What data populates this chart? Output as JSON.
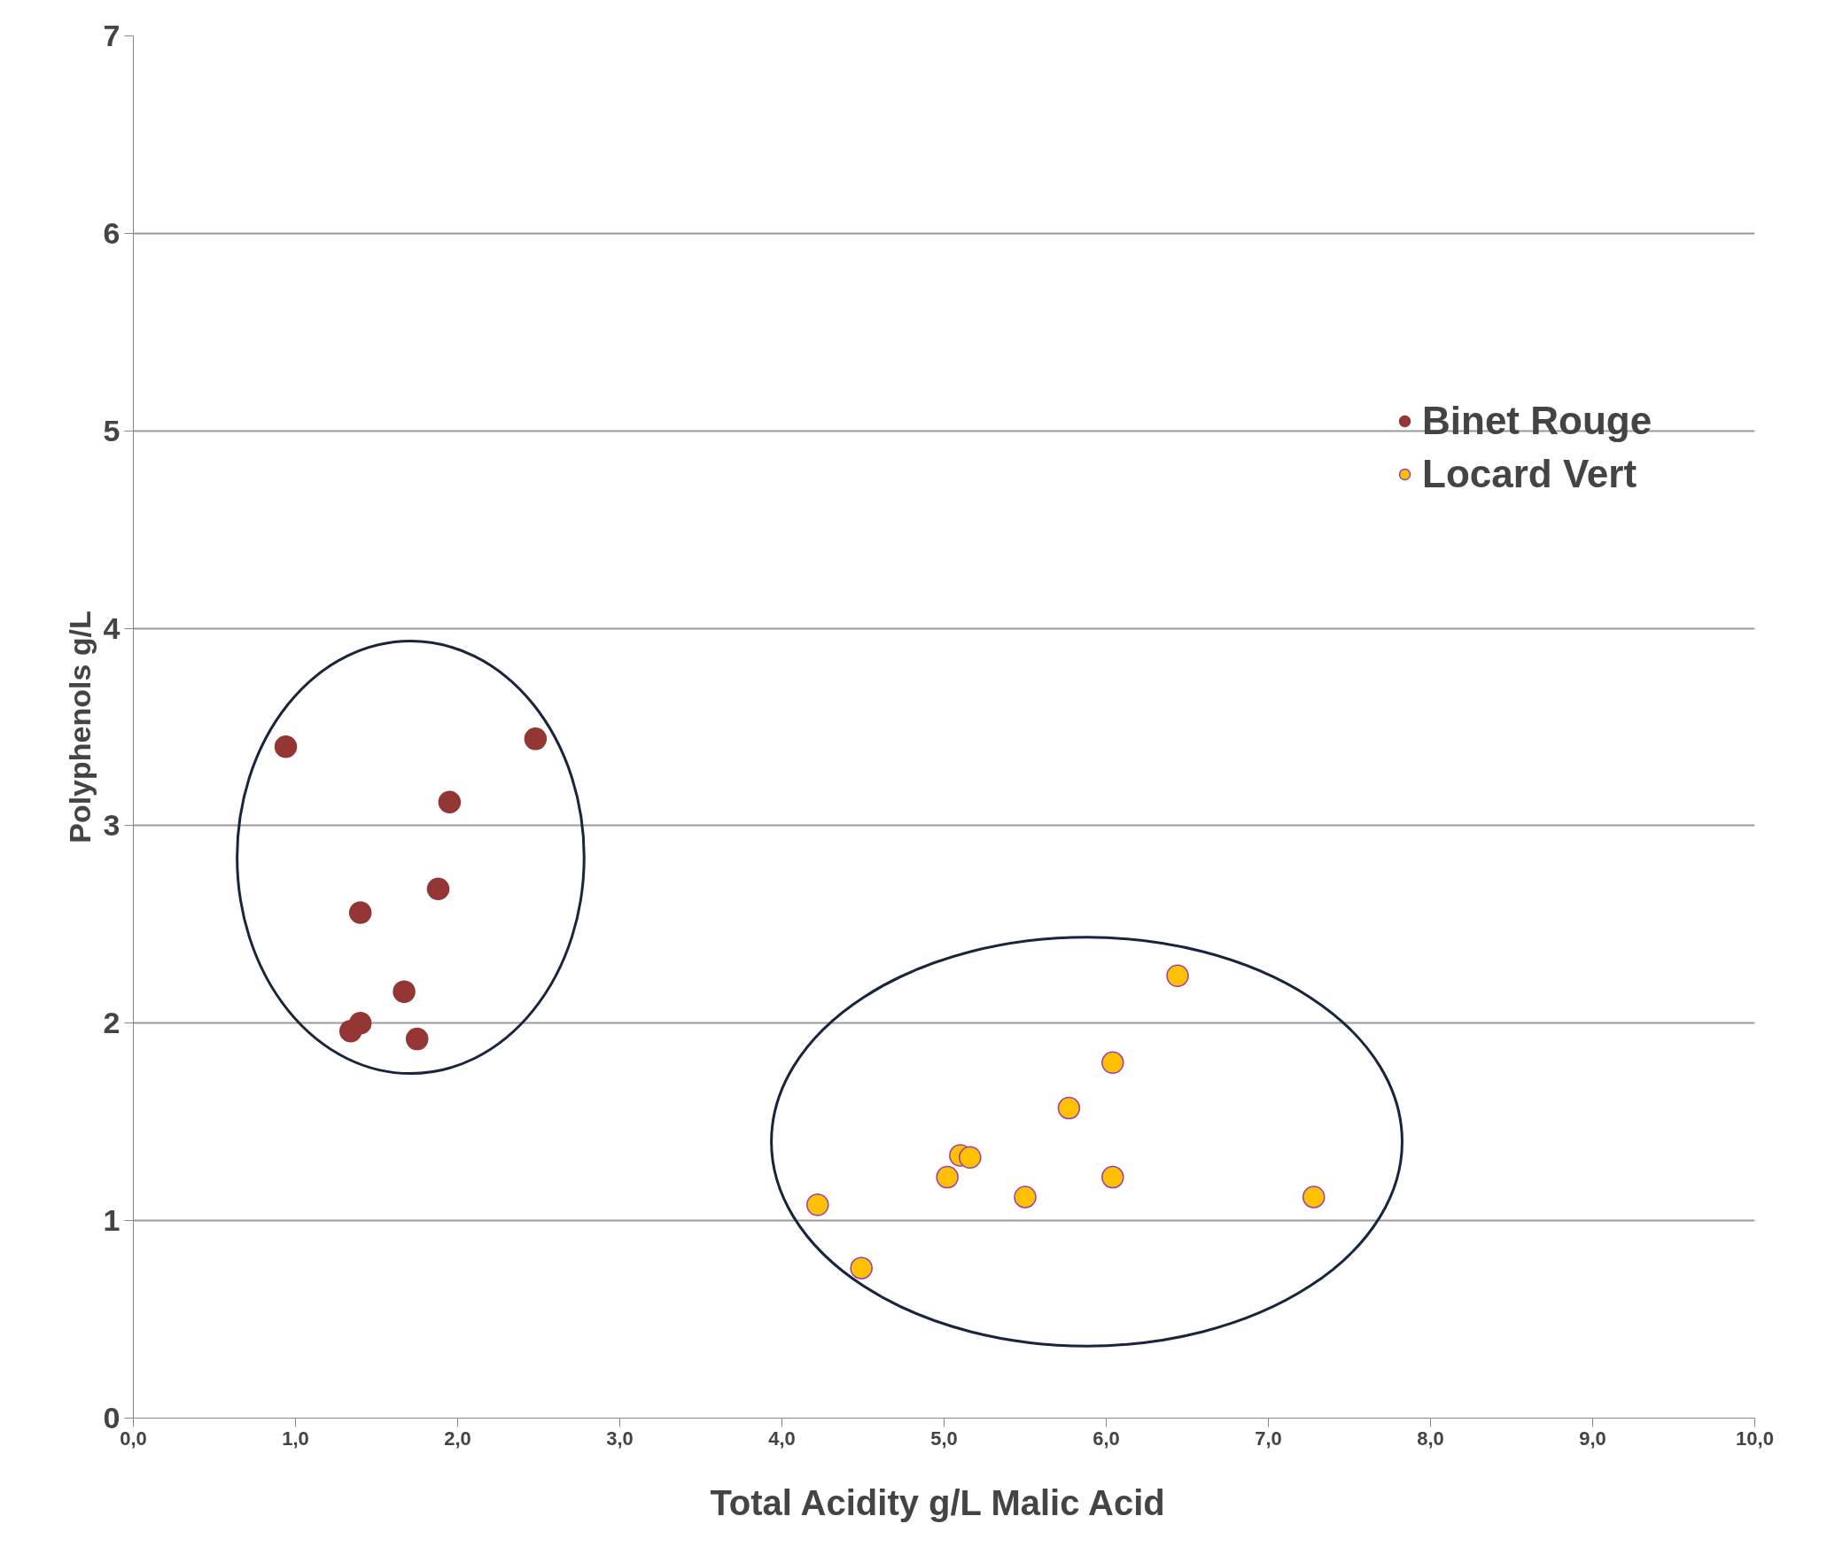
{
  "chart_data": {
    "type": "scatter",
    "xlabel": "Total Acidity  g/L Malic Acid",
    "ylabel": "Polyphenols g/L",
    "series": [
      {
        "name": "Binet Rouge",
        "color": "#943634",
        "x": [
          0.94,
          2.48,
          1.95,
          1.88,
          1.4,
          1.67,
          1.4,
          1.34,
          1.75
        ],
        "values": [
          3.4,
          3.44,
          3.12,
          2.68,
          2.56,
          2.16,
          2.0,
          1.96,
          1.92
        ]
      },
      {
        "name": "Locard Vert",
        "color": "#ffc000",
        "x": [
          6.44,
          6.04,
          5.77,
          5.1,
          5.16,
          5.02,
          5.5,
          6.04,
          7.28,
          4.22,
          4.49
        ],
        "values": [
          2.24,
          1.8,
          1.57,
          1.33,
          1.32,
          1.22,
          1.12,
          1.22,
          1.12,
          1.08,
          0.76
        ]
      }
    ],
    "xlim": [
      0,
      10
    ],
    "ylim": [
      0,
      7
    ],
    "xticks": [
      {
        "value": 0,
        "label": "0,0"
      },
      {
        "value": 1,
        "label": "1,0"
      },
      {
        "value": 2,
        "label": "2,0"
      },
      {
        "value": 3,
        "label": "3,0"
      },
      {
        "value": 4,
        "label": "4,0"
      },
      {
        "value": 5,
        "label": "5,0"
      },
      {
        "value": 6,
        "label": "6,0"
      },
      {
        "value": 7,
        "label": "7,0"
      },
      {
        "value": 8,
        "label": "8,0"
      },
      {
        "value": 9,
        "label": "9,0"
      },
      {
        "value": 10,
        "label": "10,0"
      }
    ],
    "yticks": [
      0,
      1,
      2,
      3,
      4,
      5,
      6,
      7
    ],
    "grid": "y",
    "legend": "top right",
    "marker": "circle"
  }
}
